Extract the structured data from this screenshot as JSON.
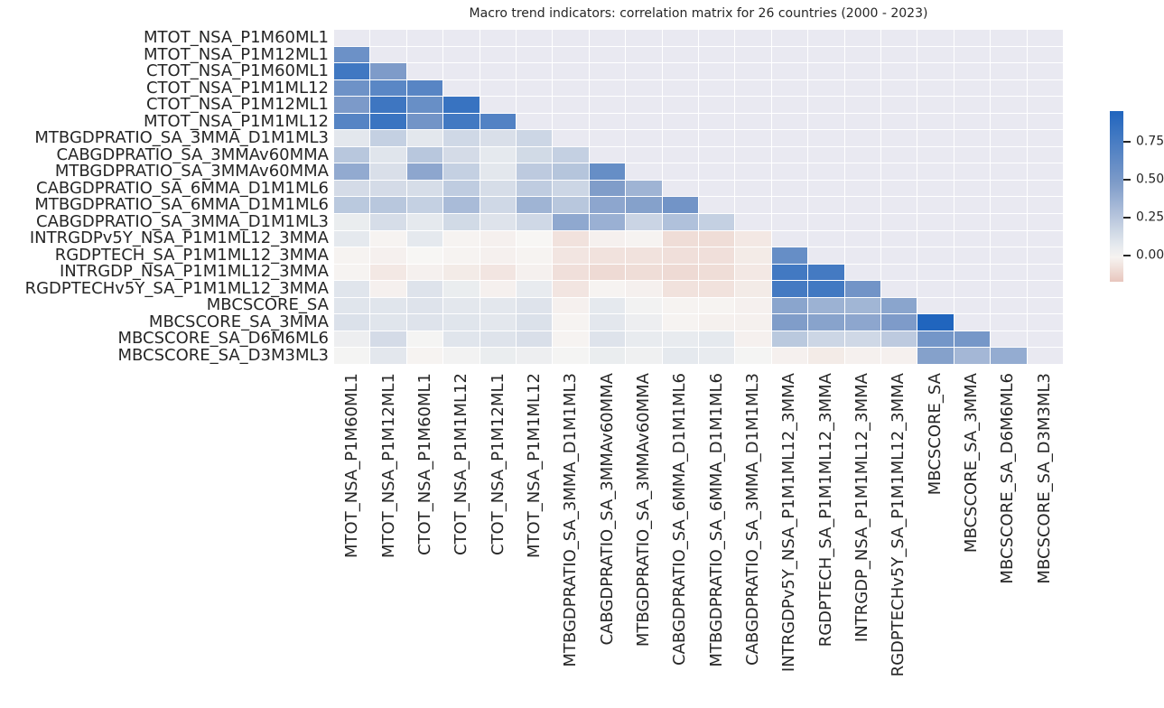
{
  "title": "Macro trend indicators: correlation matrix for 26 countries (2000 - 2023)",
  "chart_data": {
    "type": "heatmap",
    "title": "Macro trend indicators: correlation matrix for 26 countries (2000 - 2023)",
    "mask": "upper-triangle-including-diagonal",
    "grid": "white gridlines, seaborn style",
    "legend_position": "right-colorbar",
    "labels": [
      "MTOT_NSA_P1M60ML1",
      "MTOT_NSA_P1M12ML1",
      "CTOT_NSA_P1M60ML1",
      "CTOT_NSA_P1M1ML12",
      "CTOT_NSA_P1M12ML1",
      "MTOT_NSA_P1M1ML12",
      "MTBGDPRATIO_SA_3MMA_D1M1ML3",
      "CABGDPRATIO_SA_3MMAv60MMA",
      "MTBGDPRATIO_SA_3MMAv60MMA",
      "CABGDPRATIO_SA_6MMA_D1M1ML6",
      "MTBGDPRATIO_SA_6MMA_D1M1ML6",
      "CABGDPRATIO_SA_3MMA_D1M1ML3",
      "INTRGDPv5Y_NSA_P1M1ML12_3MMA",
      "RGDPTECH_SA_P1M1ML12_3MMA",
      "INTRGDP_NSA_P1M1ML12_3MMA",
      "RGDPTECHv5Y_SA_P1M1ML12_3MMA",
      "MBCSCORE_SA",
      "MBCSCORE_SA_3MMA",
      "MBCSCORE_SA_D6M6ML6",
      "MBCSCORE_SA_D3M3ML3"
    ],
    "matrix_lower_triangle": [
      [],
      [
        0.57
      ],
      [
        0.79,
        0.48
      ],
      [
        0.56,
        0.66,
        0.67
      ],
      [
        0.49,
        0.8,
        0.59,
        0.83
      ],
      [
        0.68,
        0.82,
        0.54,
        0.78,
        0.7
      ],
      [
        0.08,
        0.2,
        0.08,
        0.16,
        0.12,
        0.17
      ],
      [
        0.25,
        0.09,
        0.25,
        0.14,
        0.07,
        0.15,
        0.2
      ],
      [
        0.4,
        0.12,
        0.42,
        0.2,
        0.08,
        0.23,
        0.26,
        0.6
      ],
      [
        0.14,
        0.14,
        0.13,
        0.22,
        0.13,
        0.22,
        0.17,
        0.47,
        0.35
      ],
      [
        0.24,
        0.25,
        0.2,
        0.31,
        0.16,
        0.35,
        0.25,
        0.42,
        0.45,
        0.54
      ],
      [
        0.05,
        0.13,
        0.07,
        0.15,
        0.1,
        0.16,
        0.41,
        0.37,
        0.18,
        0.28,
        0.2
      ],
      [
        0.07,
        -0.01,
        0.07,
        -0.01,
        -0.02,
        0.0,
        -0.07,
        -0.02,
        -0.01,
        -0.09,
        -0.09,
        -0.05
      ],
      [
        -0.01,
        -0.02,
        0.0,
        -0.01,
        -0.02,
        -0.01,
        -0.06,
        -0.07,
        -0.07,
        -0.08,
        -0.08,
        -0.04,
        0.6
      ],
      [
        -0.01,
        -0.05,
        -0.02,
        -0.04,
        -0.06,
        -0.02,
        -0.08,
        -0.1,
        -0.09,
        -0.1,
        -0.09,
        -0.05,
        0.78,
        0.77
      ],
      [
        0.09,
        -0.02,
        0.1,
        0.05,
        -0.02,
        0.06,
        -0.06,
        -0.01,
        -0.02,
        -0.07,
        -0.07,
        -0.04,
        0.77,
        0.78,
        0.54
      ],
      [
        0.09,
        0.09,
        0.1,
        0.08,
        0.08,
        0.1,
        -0.02,
        0.07,
        0.02,
        -0.01,
        -0.01,
        -0.02,
        0.43,
        0.36,
        0.34,
        0.43
      ],
      [
        0.11,
        0.09,
        0.1,
        0.09,
        0.08,
        0.11,
        -0.01,
        0.08,
        0.04,
        -0.01,
        -0.02,
        -0.02,
        0.47,
        0.44,
        0.42,
        0.48,
        0.95
      ],
      [
        0.04,
        0.14,
        0.01,
        0.09,
        0.1,
        0.12,
        -0.01,
        0.1,
        0.06,
        0.06,
        0.07,
        -0.02,
        0.24,
        0.17,
        0.16,
        0.23,
        0.53,
        0.52
      ],
      [
        0.01,
        0.08,
        -0.01,
        0.02,
        0.05,
        0.04,
        0.01,
        0.05,
        0.03,
        0.07,
        0.06,
        0.01,
        -0.02,
        -0.04,
        -0.02,
        -0.02,
        0.45,
        0.33,
        0.39
      ]
    ],
    "colorbar": {
      "vmin": -0.17,
      "vmax": 0.95,
      "ticks": [
        0.75,
        0.5,
        0.25,
        0.0
      ],
      "tick_labels": [
        "0.75",
        "0.50",
        "0.25",
        "0.00"
      ]
    },
    "colors": {
      "positive_max": "#2065be",
      "positive_mid": "#7f9cc9",
      "zero": "#f7f6f4",
      "negative_min": "#e8c6bd",
      "masked_background": "#e9e9f1",
      "gridline": "#ffffff",
      "text": "#262626"
    }
  }
}
